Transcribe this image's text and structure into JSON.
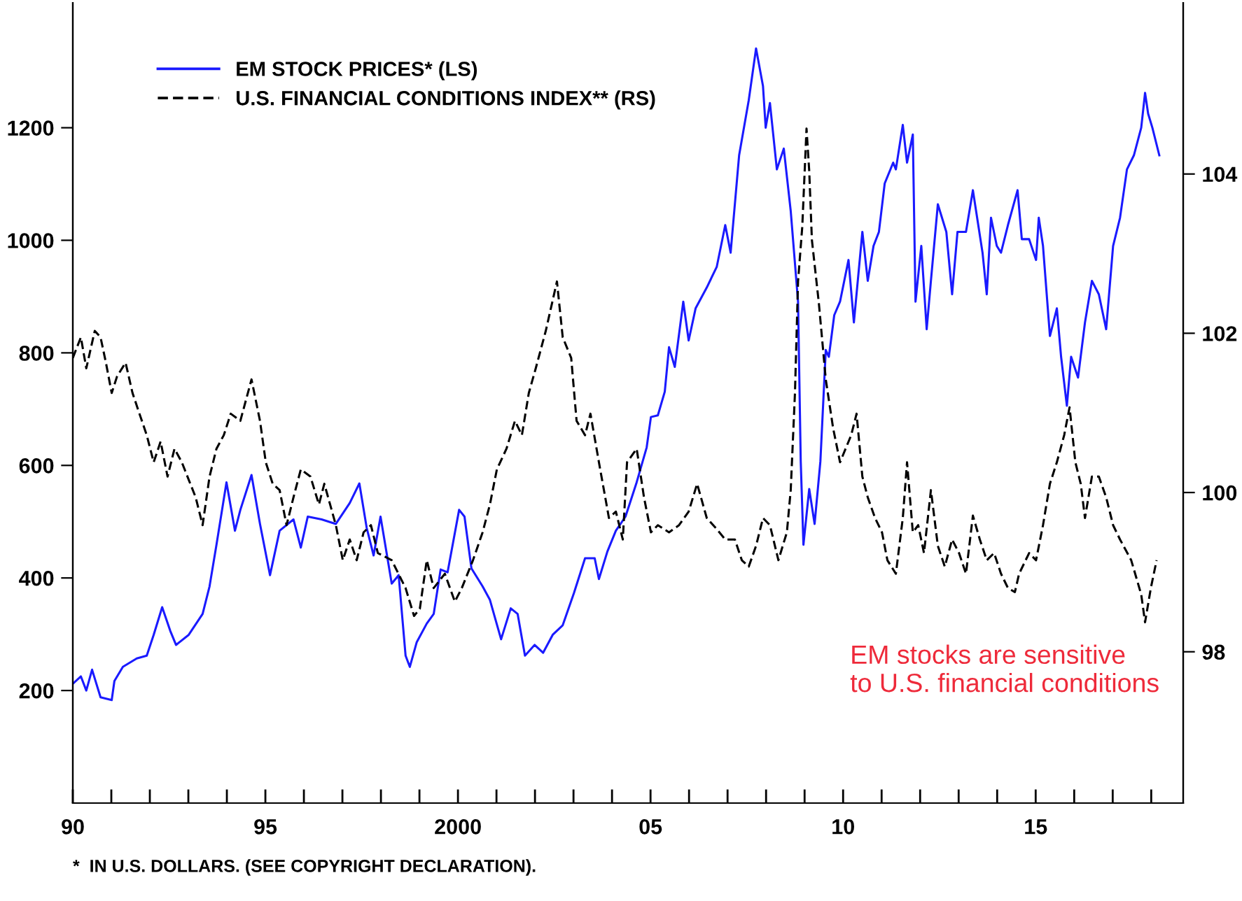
{
  "chart_data": {
    "type": "line",
    "xlim": [
      1990,
      2018.83
    ],
    "ylim": [
      0,
      1422
    ],
    "y2lim": [
      96.1,
      106.15
    ],
    "xticks": [
      {
        "value": 1990,
        "label": "90"
      },
      {
        "value": 1991,
        "label": null
      },
      {
        "value": 1992,
        "label": null
      },
      {
        "value": 1993,
        "label": null
      },
      {
        "value": 1994,
        "label": null
      },
      {
        "value": 1995,
        "label": "95"
      },
      {
        "value": 1996,
        "label": null
      },
      {
        "value": 1997,
        "label": null
      },
      {
        "value": 1998,
        "label": null
      },
      {
        "value": 1999,
        "label": null
      },
      2000,
      {
        "value": 2001,
        "label": null
      },
      {
        "value": 2002,
        "label": null
      },
      {
        "value": 2003,
        "label": null
      },
      {
        "value": 2004,
        "label": null
      },
      {
        "value": 2005,
        "label": "05"
      },
      {
        "value": 2006,
        "label": null
      },
      {
        "value": 2007,
        "label": null
      },
      {
        "value": 2008,
        "label": null
      },
      {
        "value": 2009,
        "label": null
      },
      {
        "value": 2010,
        "label": "10"
      },
      {
        "value": 2011,
        "label": null
      },
      {
        "value": 2012,
        "label": null
      },
      {
        "value": 2013,
        "label": null
      },
      {
        "value": 2014,
        "label": null
      },
      {
        "value": 2015,
        "label": "15"
      },
      {
        "value": 2016,
        "label": null
      },
      {
        "value": 2017,
        "label": null
      },
      {
        "value": 2018,
        "label": null
      }
    ],
    "yticks": [
      200,
      400,
      600,
      800,
      1000,
      1200
    ],
    "y2ticks": [
      98,
      100,
      102,
      104
    ],
    "legend": "top left",
    "grid": false,
    "annotations": [
      "EM stocks are sensitive\nto U.S. financial conditions",
      "*  IN U.S. DOLLARS. (SEE COPYRIGHT DECLARATION)."
    ],
    "series": [
      {
        "name": "EM STOCK PRICES* (LS)",
        "color": "#1a1aff",
        "line_style": "solid",
        "axis": "y",
        "x": [
          1990.0,
          1990.21,
          1990.35,
          1990.5,
          1990.72,
          1991.01,
          1991.08,
          1991.3,
          1991.66,
          1991.92,
          1992.1,
          1992.32,
          1992.53,
          1992.68,
          1993.01,
          1993.37,
          1993.55,
          1993.73,
          1993.99,
          1994.21,
          1994.35,
          1994.64,
          1994.86,
          1995.12,
          1995.37,
          1995.73,
          1995.92,
          1996.1,
          1996.46,
          1996.83,
          1997.19,
          1997.44,
          1997.63,
          1997.81,
          1997.99,
          1998.28,
          1998.46,
          1998.64,
          1998.75,
          1998.93,
          1999.19,
          1999.37,
          1999.55,
          1999.73,
          2000.03,
          2000.17,
          2000.35,
          2000.64,
          2000.83,
          2001.12,
          2001.37,
          2001.55,
          2001.74,
          2001.99,
          2002.21,
          2002.46,
          2002.72,
          2003.01,
          2003.3,
          2003.55,
          2003.66,
          2003.88,
          2004.1,
          2004.35,
          2004.64,
          2004.9,
          2005.01,
          2005.19,
          2005.37,
          2005.48,
          2005.63,
          2005.85,
          2005.99,
          2006.17,
          2006.46,
          2006.72,
          2006.94,
          2007.08,
          2007.3,
          2007.55,
          2007.74,
          2007.92,
          2007.99,
          2008.1,
          2008.28,
          2008.46,
          2008.64,
          2008.83,
          2008.9,
          2008.97,
          2009.12,
          2009.26,
          2009.41,
          2009.55,
          2009.63,
          2009.77,
          2009.92,
          2010.14,
          2010.28,
          2010.5,
          2010.64,
          2010.79,
          2010.93,
          2011.08,
          2011.3,
          2011.37,
          2011.55,
          2011.66,
          2011.81,
          2011.88,
          2012.03,
          2012.17,
          2012.28,
          2012.46,
          2012.68,
          2012.83,
          2012.97,
          2013.19,
          2013.37,
          2013.62,
          2013.73,
          2013.84,
          2013.99,
          2014.1,
          2014.28,
          2014.53,
          2014.64,
          2014.83,
          2015.01,
          2015.08,
          2015.19,
          2015.37,
          2015.55,
          2015.66,
          2015.81,
          2015.92,
          2016.1,
          2016.28,
          2016.46,
          2016.64,
          2016.83,
          2017.01,
          2017.19,
          2017.37,
          2017.55,
          2017.74,
          2017.84,
          2017.92,
          2018.03,
          2018.21
        ],
        "values": [
          212,
          225,
          200,
          237,
          188,
          183,
          217,
          242,
          257,
          262,
          299,
          348,
          306,
          281,
          299,
          336,
          385,
          459,
          570,
          484,
          521,
          583,
          496,
          405,
          484,
          504,
          454,
          509,
          504,
          496,
          533,
          568,
          489,
          440,
          509,
          390,
          405,
          262,
          242,
          286,
          319,
          336,
          415,
          410,
          521,
          509,
          417,
          385,
          361,
          291,
          346,
          336,
          262,
          281,
          267,
          299,
          316,
          373,
          435,
          435,
          398,
          447,
          484,
          509,
          570,
          632,
          686,
          689,
          731,
          810,
          775,
          891,
          822,
          879,
          916,
          953,
          1027,
          978,
          1151,
          1249,
          1341,
          1274,
          1200,
          1244,
          1126,
          1163,
          1052,
          891,
          607,
          459,
          558,
          496,
          607,
          805,
          793,
          867,
          891,
          965,
          854,
          1015,
          928,
          990,
          1015,
          1101,
          1138,
          1126,
          1205,
          1138,
          1188,
          891,
          990,
          842,
          928,
          1064,
          1015,
          904,
          1015,
          1015,
          1089,
          978,
          904,
          1040,
          990,
          978,
          1027,
          1089,
          1002,
          1002,
          965,
          1040,
          990,
          830,
          879,
          793,
          706,
          793,
          756,
          854,
          928,
          904,
          842,
          990,
          1040,
          1126,
          1151,
          1200,
          1262,
          1225,
          1200,
          1151
        ]
      },
      {
        "name": "U.S. FINANCIAL CONDITIONS INDEX** (RS)",
        "color": "#000000",
        "line_style": "dashed",
        "axis": "y2",
        "x": [
          1990.0,
          1990.21,
          1990.35,
          1990.57,
          1990.72,
          1990.86,
          1991.01,
          1991.15,
          1991.37,
          1991.55,
          1991.73,
          1991.92,
          1992.1,
          1992.28,
          1992.46,
          1992.64,
          1992.83,
          1993.19,
          1993.37,
          1993.55,
          1993.73,
          1993.92,
          1994.1,
          1994.35,
          1994.64,
          1994.86,
          1995.01,
          1995.19,
          1995.37,
          1995.55,
          1995.73,
          1995.92,
          1996.17,
          1996.39,
          1996.53,
          1996.83,
          1997.01,
          1997.19,
          1997.37,
          1997.55,
          1997.74,
          1997.92,
          1998.28,
          1998.64,
          1998.86,
          1999.01,
          1999.19,
          1999.37,
          1999.66,
          1999.92,
          2000.1,
          2000.39,
          2000.64,
          2000.83,
          2001.01,
          2001.26,
          2001.48,
          2001.66,
          2001.84,
          2002.02,
          2002.28,
          2002.57,
          2002.72,
          2002.94,
          2003.08,
          2003.3,
          2003.44,
          2003.66,
          2003.92,
          2004.1,
          2004.28,
          2004.39,
          2004.64,
          2004.83,
          2005.01,
          2005.19,
          2005.48,
          2005.74,
          2005.99,
          2006.21,
          2006.46,
          2006.72,
          2006.94,
          2007.19,
          2007.37,
          2007.55,
          2007.74,
          2007.92,
          2008.1,
          2008.32,
          2008.54,
          2008.64,
          2008.75,
          2008.83,
          2008.94,
          2009.05,
          2009.12,
          2009.19,
          2009.37,
          2009.55,
          2009.74,
          2009.92,
          2010.21,
          2010.35,
          2010.5,
          2010.64,
          2010.83,
          2011.01,
          2011.15,
          2011.37,
          2011.55,
          2011.66,
          2011.81,
          2011.95,
          2012.1,
          2012.28,
          2012.46,
          2012.64,
          2012.83,
          2013.01,
          2013.19,
          2013.37,
          2013.55,
          2013.73,
          2013.92,
          2014.1,
          2014.28,
          2014.46,
          2014.57,
          2014.83,
          2015.01,
          2015.19,
          2015.37,
          2015.55,
          2015.74,
          2015.88,
          2016.03,
          2016.17,
          2016.28,
          2016.46,
          2016.64,
          2016.83,
          2017.01,
          2017.19,
          2017.48,
          2017.74,
          2017.84,
          2017.99,
          2018.14
        ],
        "values": [
          101.69,
          101.95,
          101.56,
          102.03,
          101.95,
          101.63,
          101.25,
          101.46,
          101.63,
          101.25,
          100.99,
          100.72,
          100.38,
          100.64,
          100.2,
          100.55,
          100.38,
          99.94,
          99.59,
          100.2,
          100.55,
          100.72,
          100.99,
          100.9,
          101.42,
          100.9,
          100.38,
          100.11,
          100.03,
          99.59,
          99.94,
          100.29,
          100.2,
          99.85,
          100.11,
          99.59,
          99.15,
          99.41,
          99.15,
          99.5,
          99.59,
          99.24,
          99.15,
          98.8,
          98.45,
          98.54,
          99.15,
          98.8,
          98.98,
          98.63,
          98.8,
          99.15,
          99.5,
          99.85,
          100.29,
          100.55,
          100.9,
          100.72,
          101.25,
          101.56,
          102.03,
          102.65,
          101.95,
          101.69,
          100.9,
          100.72,
          100.99,
          100.38,
          99.68,
          99.76,
          99.41,
          100.38,
          100.55,
          99.94,
          99.5,
          99.59,
          99.5,
          99.59,
          99.76,
          100.11,
          99.68,
          99.54,
          99.41,
          99.41,
          99.15,
          99.07,
          99.33,
          99.68,
          99.59,
          99.15,
          99.5,
          100.03,
          101.25,
          102.65,
          103.34,
          104.57,
          104.04,
          103.17,
          102.38,
          101.42,
          100.81,
          100.38,
          100.72,
          100.99,
          100.2,
          99.94,
          99.68,
          99.5,
          99.15,
          98.98,
          99.68,
          100.38,
          99.5,
          99.59,
          99.24,
          100.03,
          99.33,
          99.07,
          99.41,
          99.24,
          98.98,
          99.71,
          99.41,
          99.15,
          99.24,
          98.98,
          98.8,
          98.75,
          98.98,
          99.24,
          99.15,
          99.59,
          100.11,
          100.38,
          100.72,
          101.07,
          100.38,
          100.11,
          99.68,
          100.2,
          100.2,
          99.94,
          99.59,
          99.41,
          99.15,
          98.72,
          98.37,
          98.8,
          99.15
        ]
      }
    ]
  }
}
